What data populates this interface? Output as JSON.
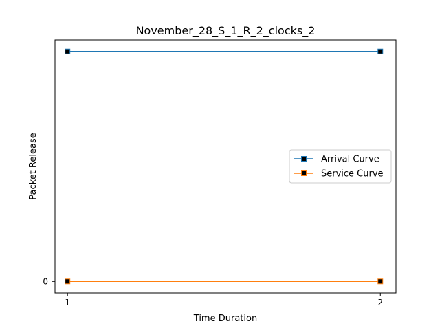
{
  "chart_data": {
    "type": "line",
    "title": "November_28_S_1_R_2_clocks_2",
    "xlabel": "Time Duration",
    "ylabel": "Packet Release",
    "x": [
      1,
      2
    ],
    "x_ticks": [
      "1",
      "2"
    ],
    "y_ticks": [
      "0"
    ],
    "xlim": [
      0.96,
      2.05
    ],
    "ylim": [
      -0.05,
      1.05
    ],
    "grid": false,
    "legend_position": "center-right",
    "series": [
      {
        "name": "Arrival Curve",
        "values": [
          1,
          1
        ],
        "color": "#1f77b4",
        "marker": "square",
        "marker_fill": "#000000"
      },
      {
        "name": "Service Curve",
        "values": [
          0,
          0
        ],
        "color": "#ff7f0e",
        "marker": "square",
        "marker_fill": "#000000"
      }
    ]
  }
}
